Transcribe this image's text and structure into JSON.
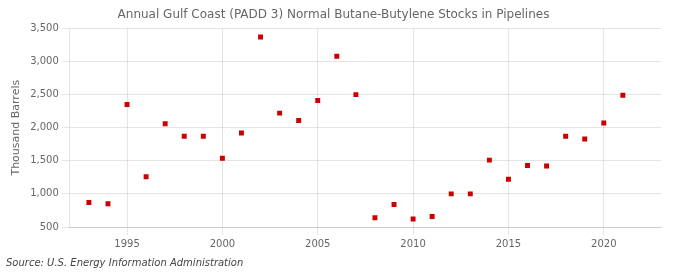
{
  "chart_data": {
    "type": "scatter",
    "title": "Annual Gulf Coast (PADD 3) Normal Butane-Butylene Stocks in Pipelines",
    "ylabel": "Thousand Barrels",
    "annotation": "Source: U.S. Energy Information Administration",
    "x": [
      1993,
      1994,
      1995,
      1996,
      1997,
      1998,
      1999,
      2000,
      2001,
      2002,
      2003,
      2004,
      2005,
      2006,
      2007,
      2008,
      2009,
      2010,
      2011,
      2012,
      2013,
      2014,
      2015,
      2016,
      2017,
      2018,
      2019,
      2020,
      2021
    ],
    "values": [
      870,
      850,
      2350,
      1260,
      2060,
      1870,
      1870,
      1540,
      1920,
      3370,
      2220,
      2110,
      2410,
      3080,
      2500,
      640,
      840,
      620,
      660,
      1000,
      1000,
      1510,
      1220,
      1430,
      1420,
      1870,
      1830,
      2070,
      2490
    ],
    "color": "#cc0000",
    "marker": "square",
    "xlim": [
      1992.0,
      2023.0
    ],
    "ylim": [
      500,
      3500
    ],
    "xticks": [
      1995,
      2000,
      2005,
      2010,
      2015,
      2020
    ],
    "yticks": [
      500,
      {
        "value": 1000,
        "label": "1,000"
      },
      {
        "value": 1500,
        "label": "1,500"
      },
      {
        "value": 2000,
        "label": "2,000"
      },
      {
        "value": 2500,
        "label": "2,500"
      },
      {
        "value": 3000,
        "label": "3,000"
      },
      {
        "value": 3500,
        "label": "3,500"
      }
    ],
    "grid": true
  }
}
